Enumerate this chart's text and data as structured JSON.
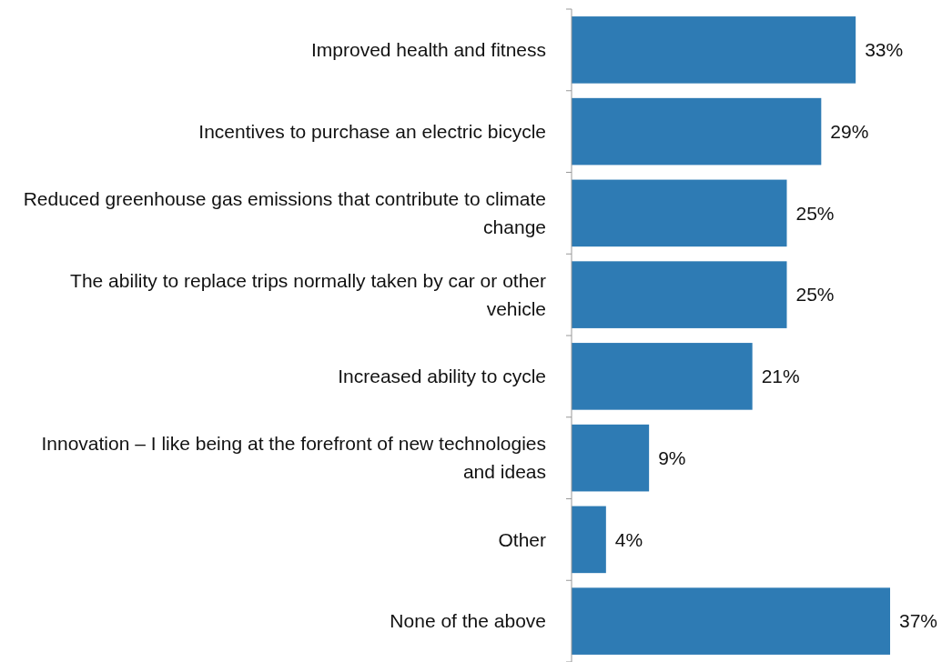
{
  "chart_data": {
    "type": "bar",
    "orientation": "horizontal",
    "categories": [
      "Improved health and fitness",
      "Incentives to purchase an electric bicycle",
      "Reduced greenhouse gas emissions that contribute to climate change",
      "The ability to replace trips normally taken by car or other vehicle",
      "Increased ability to cycle",
      "Innovation – I like being at the forefront of new technologies and ideas",
      "Other",
      "None of the above"
    ],
    "values": [
      33,
      29,
      25,
      25,
      21,
      9,
      4,
      37
    ],
    "value_labels": [
      "33%",
      "29%",
      "25%",
      "25%",
      "21%",
      "9%",
      "4%",
      "37%"
    ],
    "color": "#2e7bb4"
  }
}
